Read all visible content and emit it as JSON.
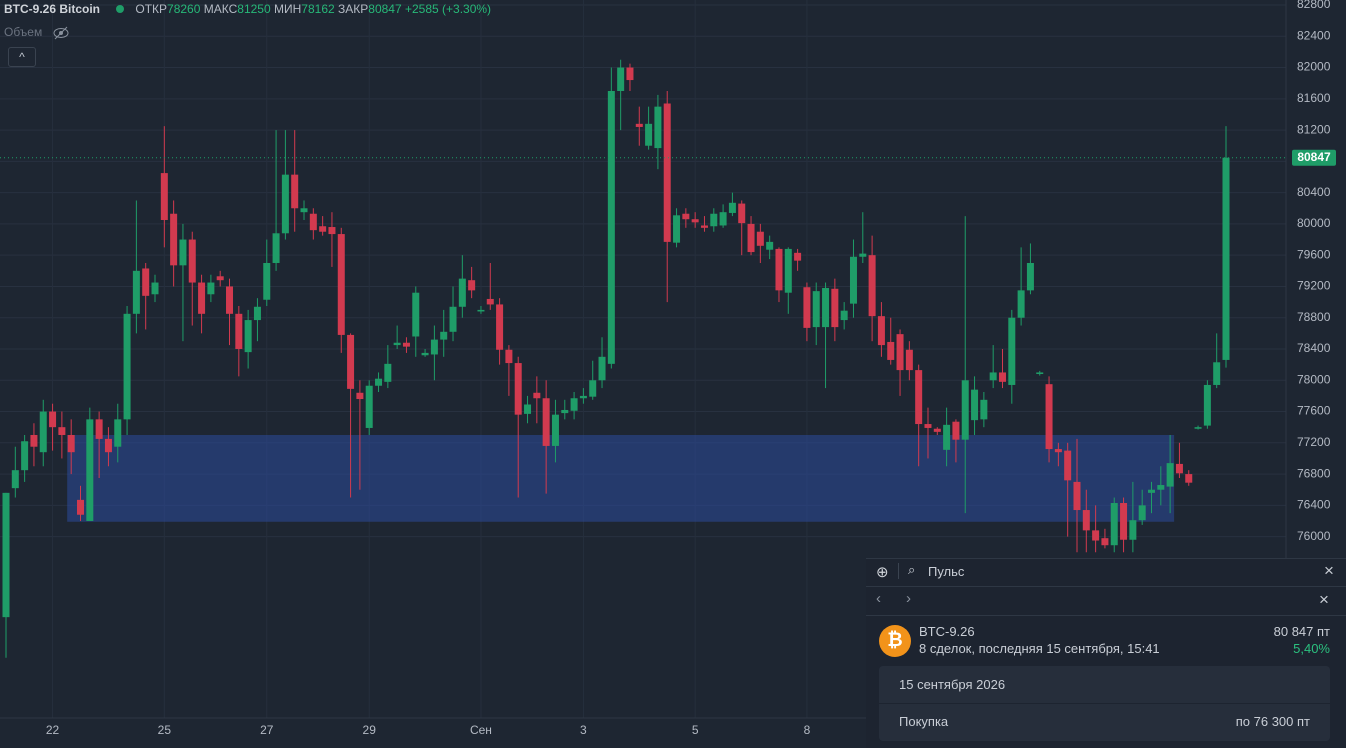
{
  "chart_data": {
    "type": "candlestick",
    "title": "BTC-9.26 Bitcoin",
    "ohlc_labels": {
      "open": "ОТКР",
      "high": "МАКС",
      "low": "МИН",
      "close": "ЗАКР"
    },
    "change": "+2585 (+3.30%)",
    "volume_label": "Объем",
    "categories": [
      null,
      null,
      null,
      null,
      null,
      "22",
      null,
      null,
      null,
      null,
      null,
      null,
      null,
      null,
      null,
      null,
      null,
      "25",
      null,
      null,
      null,
      null,
      null,
      null,
      null,
      null,
      null,
      null,
      "27",
      null,
      null,
      null,
      null,
      null,
      null,
      null,
      null,
      null,
      null,
      "29",
      null,
      null,
      null,
      null,
      null,
      null,
      null,
      null,
      null,
      null,
      null,
      "Сен",
      null,
      null,
      null,
      null,
      null,
      null,
      null,
      null,
      null,
      null,
      "3",
      null,
      null,
      null,
      null,
      null,
      null,
      null,
      null,
      null,
      null,
      null,
      "5",
      null,
      null,
      null,
      null,
      null,
      null,
      null,
      null,
      null,
      null,
      null,
      "8",
      null,
      null,
      null,
      null,
      null,
      null,
      null,
      null,
      null,
      null,
      null,
      null,
      null,
      null,
      null,
      null,
      null,
      null,
      null,
      null,
      null,
      null,
      null,
      null,
      null,
      null,
      null,
      null,
      null,
      null,
      null,
      null,
      null,
      null,
      null,
      null,
      null,
      null,
      null,
      null,
      null,
      null,
      null,
      null,
      null
    ],
    "open": [
      74970,
      76620,
      76850,
      77300,
      77080,
      77600,
      77400,
      77300,
      76470,
      76200,
      77500,
      77250,
      77150,
      77500,
      78850,
      79430,
      79100,
      80650,
      80130,
      79470,
      79800,
      79250,
      79100,
      79330,
      79200,
      78850,
      78360,
      78770,
      79030,
      79500,
      79880,
      80630,
      80150,
      80130,
      79970,
      79960,
      79870,
      78580,
      77840,
      77390,
      77930,
      77980,
      78450,
      78480,
      78560,
      78320,
      78330,
      78520,
      78620,
      78940,
      79280,
      78880,
      79040,
      78970,
      78390,
      78220,
      77570,
      77840,
      77770,
      77160,
      77580,
      77610,
      77770,
      77790,
      78000,
      78210,
      81700,
      82000,
      81280,
      81000,
      80970,
      81540,
      79760,
      80130,
      80060,
      79980,
      79970,
      79980,
      80140,
      80260,
      80000,
      79900,
      79670,
      79680,
      79120,
      79630,
      79190,
      78680,
      78680,
      79170,
      78770,
      78980,
      79580,
      79600,
      78820,
      78490,
      78590,
      78390,
      78130,
      77440,
      77380,
      77110,
      77470,
      77240,
      77490,
      77500,
      78000,
      78100,
      77940,
      78800,
      79150,
      78080,
      77950,
      77120,
      77100,
      76700,
      76340,
      76080,
      75980,
      75890,
      76430,
      75960,
      76210,
      76560,
      76600,
      76640,
      76930,
      76800,
      77380,
      77420,
      77940,
      78260
    ],
    "high": [
      76560,
      77150,
      77300,
      77450,
      77750,
      77700,
      77600,
      77500,
      76650,
      77650,
      77600,
      77400,
      77700,
      78950,
      80300,
      79500,
      79350,
      81250,
      80300,
      80000,
      79900,
      79350,
      79350,
      79400,
      79300,
      78950,
      78900,
      79050,
      79800,
      81200,
      81200,
      81200,
      80300,
      80200,
      80100,
      80150,
      79950,
      78600,
      78000,
      78000,
      78100,
      78450,
      78700,
      78550,
      79200,
      78400,
      78700,
      78900,
      79200,
      79600,
      79450,
      78950,
      79500,
      79050,
      78450,
      78300,
      77800,
      78050,
      78000,
      77750,
      77750,
      77850,
      77900,
      78250,
      78550,
      82000,
      82100,
      82050,
      81500,
      81500,
      81650,
      81700,
      80200,
      80200,
      80150,
      80100,
      80200,
      80250,
      80400,
      80300,
      80100,
      80000,
      79850,
      79700,
      79700,
      79680,
      79250,
      79250,
      79250,
      79300,
      79000,
      79800,
      80150,
      79850,
      79000,
      78800,
      78650,
      78500,
      78200,
      77650,
      77400,
      77650,
      77500,
      80100,
      78050,
      77850,
      78450,
      78400,
      78900,
      79700,
      79750,
      78120,
      78050,
      77200,
      77200,
      77250,
      76600,
      76400,
      76100,
      76500,
      76500,
      76700,
      76600,
      76700,
      76900,
      77300,
      77200,
      76850,
      77420,
      78000,
      78600,
      81250
    ],
    "low": [
      74450,
      76500,
      76700,
      76900,
      76900,
      77100,
      77000,
      76800,
      76200,
      76200,
      76750,
      76900,
      76950,
      77300,
      78600,
      78650,
      79000,
      79700,
      79200,
      78500,
      78700,
      78600,
      79000,
      79200,
      78450,
      78050,
      78150,
      78500,
      78950,
      79400,
      79800,
      79900,
      80050,
      79800,
      79850,
      79450,
      78350,
      76500,
      76600,
      77300,
      77850,
      77900,
      78400,
      78350,
      78300,
      78300,
      78000,
      78300,
      78500,
      78800,
      79050,
      78850,
      78900,
      78200,
      77800,
      76500,
      77450,
      77450,
      76550,
      76950,
      77500,
      77500,
      77700,
      77750,
      77900,
      78150,
      81200,
      81700,
      81000,
      80950,
      80700,
      79000,
      79700,
      79950,
      79950,
      79900,
      79900,
      79950,
      80100,
      79600,
      79600,
      79500,
      79550,
      79000,
      78850,
      79400,
      78500,
      78450,
      77900,
      78500,
      78650,
      78800,
      79500,
      78500,
      78300,
      78200,
      77800,
      78000,
      76900,
      77000,
      77300,
      76900,
      76950,
      76300,
      77300,
      77400,
      77900,
      77900,
      77700,
      78700,
      79100,
      78060,
      76950,
      76900,
      76000,
      75800,
      75800,
      75800,
      75850,
      75800,
      75800,
      75800,
      76150,
      76300,
      76400,
      76300,
      76750,
      76650,
      77370,
      77380,
      77900,
      78162
    ],
    "close": [
      76560,
      76850,
      77220,
      77150,
      77600,
      77400,
      77300,
      77080,
      76280,
      77500,
      77250,
      77080,
      77500,
      78850,
      79400,
      79080,
      79250,
      80050,
      79470,
      79800,
      79250,
      78850,
      79250,
      79280,
      78850,
      78400,
      78770,
      78940,
      79500,
      79880,
      80630,
      80200,
      80200,
      79920,
      79900,
      79870,
      78580,
      77890,
      77760,
      77930,
      78020,
      78210,
      78480,
      78430,
      79120,
      78350,
      78520,
      78620,
      78940,
      79300,
      79150,
      78900,
      78970,
      78390,
      78220,
      77560,
      77690,
      77770,
      77160,
      77560,
      77620,
      77770,
      77800,
      78000,
      78300,
      81700,
      82000,
      81840,
      81240,
      81280,
      81500,
      79770,
      80110,
      80060,
      80020,
      79950,
      80130,
      80150,
      80270,
      80010,
      79640,
      79720,
      79770,
      79150,
      79680,
      79530,
      78670,
      79140,
      79180,
      78680,
      78890,
      79580,
      79620,
      78820,
      78450,
      78260,
      78130,
      78130,
      77440,
      77390,
      77340,
      77430,
      77240,
      78000,
      77880,
      77750,
      78100,
      77980,
      78800,
      79150,
      79500,
      78100,
      77120,
      77080,
      76720,
      76340,
      76080,
      75950,
      75890,
      76430,
      75960,
      76210,
      76400,
      76600,
      76660,
      76940,
      76810,
      76690,
      77400,
      77940,
      78230,
      80847
    ],
    "colors": {
      "up": "#1f9d68",
      "down": "#d23a4f"
    },
    "zone": {
      "low": 76190,
      "high": 77300,
      "color": "#2b4a9c"
    },
    "ylim": [
      73680,
      82864
    ],
    "yticks": [
      76000,
      76400,
      76800,
      77200,
      77600,
      78000,
      78400,
      78800,
      79200,
      79600,
      80000,
      80400,
      80800,
      81200,
      81600,
      82000,
      82400,
      82800
    ],
    "grid": true
  },
  "panel": {
    "search_placeholder": "Пульс",
    "instrument": "BTC-9.26",
    "trades": "8 сделок, последняя 15 сентября, 15:41",
    "price": "80 847 пт",
    "change": "5,40%",
    "date": "15 сентября 2026",
    "action": "Покупка",
    "action_price": "по 76 300 пт"
  }
}
